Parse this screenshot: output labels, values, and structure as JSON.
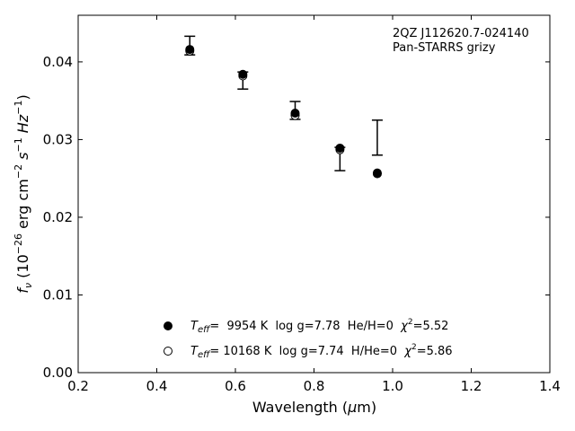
{
  "chart_data": {
    "type": "scatter",
    "title": "",
    "annotation": [
      "2QZ J112620.7-024140",
      "Pan-STARRS grizy"
    ],
    "xlabel": {
      "text": "Wavelength (",
      "mu": "μ",
      "unit": "m)"
    },
    "ylabel": {
      "prefix": "f",
      "sub": "ν",
      "rest": " (10",
      "exp1": "−26",
      "mid": " erg cm",
      "exp2": "−2",
      "mid2": " s",
      "exp3": "−1",
      "mid3": " Hz",
      "exp4": "−1",
      "end": ")"
    },
    "xlim": [
      0.2,
      1.4
    ],
    "ylim": [
      0.0,
      0.046
    ],
    "xticks": [
      0.2,
      0.4,
      0.6,
      0.8,
      1.0,
      1.2,
      1.4
    ],
    "xtick_labels": [
      "0.2",
      "0.4",
      "0.6",
      "0.8",
      "1.0",
      "1.2",
      "1.4"
    ],
    "yticks": [
      0.0,
      0.01,
      0.02,
      0.03,
      0.04
    ],
    "ytick_labels": [
      "0.00",
      "0.01",
      "0.02",
      "0.03",
      "0.04"
    ],
    "grid": false,
    "observed": {
      "x": [
        0.484,
        0.619,
        0.752,
        0.866,
        0.961
      ],
      "ylow": [
        0.0409,
        0.0365,
        0.0326,
        0.026,
        0.028
      ],
      "yhigh": [
        0.0433,
        0.0387,
        0.0349,
        0.029,
        0.0325
      ]
    },
    "series": [
      {
        "marker": "filled",
        "x": [
          0.484,
          0.619,
          0.752,
          0.866,
          0.961
        ],
        "y": [
          0.0416,
          0.0384,
          0.0334,
          0.0289,
          0.0257
        ],
        "legend": {
          "t": "T",
          "sub": "eff",
          "text": "=  9954 K  log g=7.78  He/H=0  ",
          "chi": "χ",
          "sup": "2",
          "chi_val": "=5.52"
        }
      },
      {
        "marker": "open",
        "x": [
          0.484,
          0.619,
          0.752,
          0.866,
          0.961
        ],
        "y": [
          0.0414,
          0.0382,
          0.0331,
          0.0287,
          0.0256
        ],
        "legend": {
          "t": "T",
          "sub": "eff",
          "text": "= 10168 K  log g=7.74  H/He=0  ",
          "chi": "χ",
          "sup": "2",
          "chi_val": "=5.86"
        }
      }
    ],
    "legend_position": "lower-center"
  }
}
